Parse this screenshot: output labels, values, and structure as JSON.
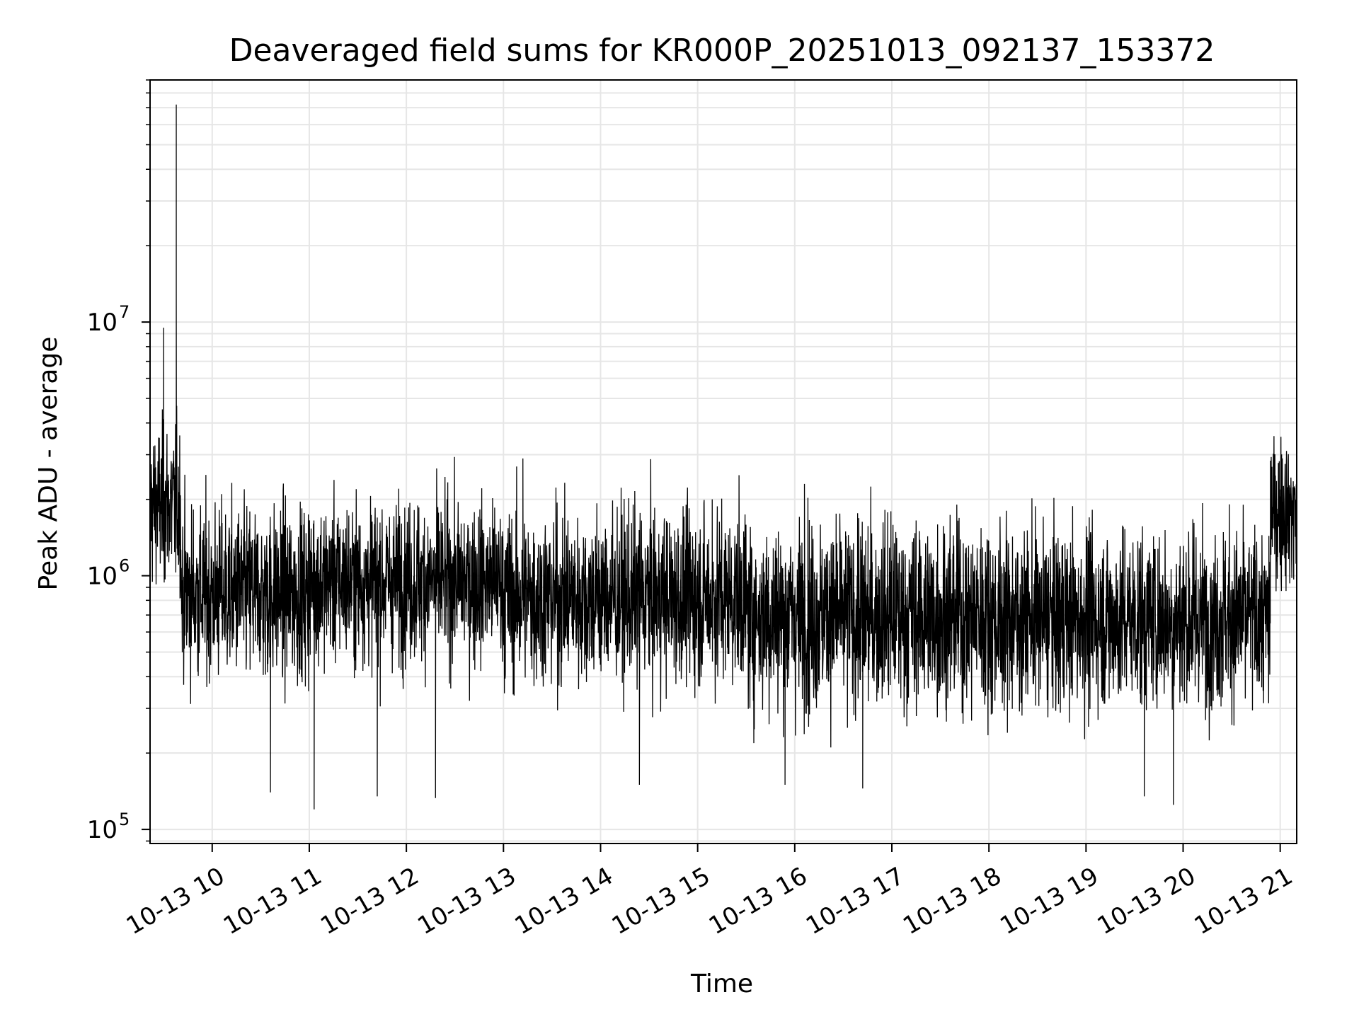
{
  "chart_data": {
    "type": "line",
    "title": "Deaveraged field sums for KR000P_20251013_092137_153372",
    "xlabel": "Time",
    "ylabel": "Peak ADU - average",
    "yscale": "log",
    "ylim": [
      88000,
      90000000
    ],
    "xlim_hours": [
      9.36,
      21.17
    ],
    "grid": true,
    "line_color": "#000000",
    "grid_color": "#e6e6e6",
    "x_ticks": [
      {
        "hour": 10,
        "label": "10-13 10"
      },
      {
        "hour": 11,
        "label": "10-13 11"
      },
      {
        "hour": 12,
        "label": "10-13 12"
      },
      {
        "hour": 13,
        "label": "10-13 13"
      },
      {
        "hour": 14,
        "label": "10-13 14"
      },
      {
        "hour": 15,
        "label": "10-13 15"
      },
      {
        "hour": 16,
        "label": "10-13 16"
      },
      {
        "hour": 17,
        "label": "10-13 17"
      },
      {
        "hour": 18,
        "label": "10-13 18"
      },
      {
        "hour": 19,
        "label": "10-13 19"
      },
      {
        "hour": 20,
        "label": "10-13 20"
      },
      {
        "hour": 21,
        "label": "10-13 21"
      }
    ],
    "y_ticks": [
      {
        "value": 100000,
        "base": "10",
        "exp": "5"
      },
      {
        "value": 1000000,
        "base": "10",
        "exp": "6"
      },
      {
        "value": 10000000,
        "base": "10",
        "exp": "7"
      }
    ],
    "series": [
      {
        "name": "Peak ADU - average",
        "segments": [
          {
            "start_hour": 9.36,
            "end_hour": 9.68,
            "median": 1900000,
            "spread_dex": 0.22
          },
          {
            "start_hour": 9.68,
            "end_hour": 11.0,
            "median": 850000,
            "spread_dex": 0.24
          },
          {
            "start_hour": 11.0,
            "end_hour": 13.0,
            "median": 950000,
            "spread_dex": 0.22
          },
          {
            "start_hour": 13.0,
            "end_hour": 15.5,
            "median": 820000,
            "spread_dex": 0.24
          },
          {
            "start_hour": 15.5,
            "end_hour": 18.0,
            "median": 700000,
            "spread_dex": 0.26
          },
          {
            "start_hour": 18.0,
            "end_hour": 20.9,
            "median": 680000,
            "spread_dex": 0.25
          },
          {
            "start_hour": 20.9,
            "end_hour": 21.17,
            "median": 1800000,
            "spread_dex": 0.2
          }
        ],
        "spikes": [
          {
            "hour": 9.63,
            "value": 72000000
          },
          {
            "hour": 9.63,
            "value": 13000000
          },
          {
            "hour": 9.5,
            "value": 9500000
          },
          {
            "hour": 10.6,
            "value": 140000
          },
          {
            "hour": 11.05,
            "value": 120000
          },
          {
            "hour": 11.7,
            "value": 135000
          },
          {
            "hour": 12.3,
            "value": 133000
          },
          {
            "hour": 13.2,
            "value": 2900000
          },
          {
            "hour": 14.4,
            "value": 150000
          },
          {
            "hour": 15.15,
            "value": 2000000
          },
          {
            "hour": 15.9,
            "value": 150000
          },
          {
            "hour": 16.1,
            "value": 2300000
          },
          {
            "hour": 16.7,
            "value": 145000
          },
          {
            "hour": 19.6,
            "value": 135000
          },
          {
            "hour": 19.9,
            "value": 125000
          }
        ]
      }
    ]
  }
}
